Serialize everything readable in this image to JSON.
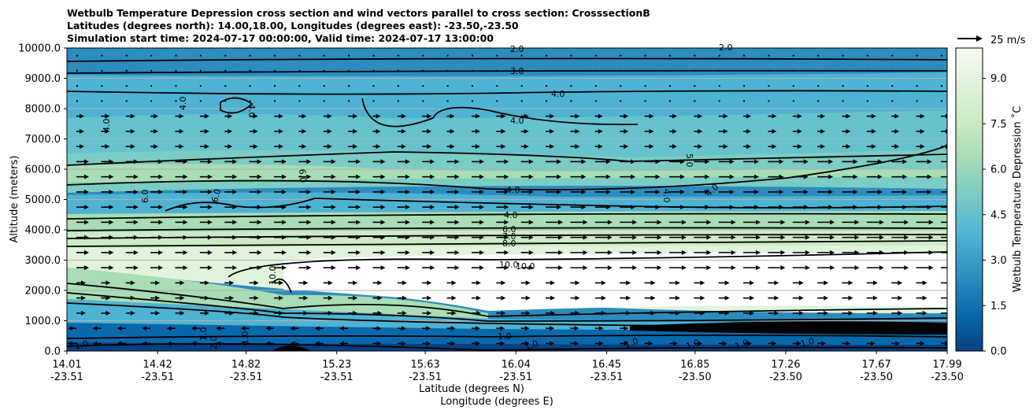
{
  "chart_data": {
    "type": "contour",
    "title_lines": [
      "Wetbulb Temperature Depression cross section and wind vectors parallel to cross section: CrosssectionB",
      "Latitudes (degrees north): 14.00,18.00, Longitudes (degrees east): -23.50,-23.50",
      "Simulation start time: 2024-07-17 00:00:00, Valid time: 2024-07-17 13:00:00"
    ],
    "xlabel_lat": "Latitude (degrees N)",
    "xlabel_lon": "Longitude (degrees E)",
    "ylabel": "Altitude (meters)",
    "ylim": [
      0,
      10000
    ],
    "y_ticks": [
      "0.0",
      "1000.0",
      "2000.0",
      "3000.0",
      "4000.0",
      "5000.0",
      "6000.0",
      "7000.0",
      "8000.0",
      "9000.0",
      "10000.0"
    ],
    "x_ticks": [
      {
        "lat": "14.01",
        "lon": "-23.51"
      },
      {
        "lat": "14.42",
        "lon": "-23.51"
      },
      {
        "lat": "14.82",
        "lon": "-23.51"
      },
      {
        "lat": "15.23",
        "lon": "-23.51"
      },
      {
        "lat": "15.63",
        "lon": "-23.51"
      },
      {
        "lat": "16.04",
        "lon": "-23.51"
      },
      {
        "lat": "16.45",
        "lon": "-23.51"
      },
      {
        "lat": "16.85",
        "lon": "-23.50"
      },
      {
        "lat": "17.26",
        "lon": "-23.50"
      },
      {
        "lat": "17.67",
        "lon": "-23.50"
      },
      {
        "lat": "17.99",
        "lon": "-23.50"
      }
    ],
    "colorbar": {
      "label": "Wetbulb Temperature Depression ˚C",
      "range": [
        0,
        10
      ],
      "ticks": [
        "0.0",
        "1.5",
        "3.0",
        "4.5",
        "6.0",
        "7.5",
        "9.0"
      ],
      "colormap": "GnBu_r",
      "colors": [
        "#084081",
        "#0868ac",
        "#2b8cbe",
        "#4eb3d3",
        "#7bccc4",
        "#a8ddb5",
        "#ccebc5",
        "#e0f3db",
        "#f7fcf0",
        "#ffffff"
      ]
    },
    "quiver_key": "25 m/s",
    "grid": "horizontal",
    "contour_labels": [
      "2.0",
      "2.0",
      "3.0",
      "4.0",
      "4.0",
      "4.0",
      "4.0",
      "4.0",
      "4.0",
      "4.0",
      "4.0",
      "4.0",
      "5.0",
      "6.0",
      "6.0",
      "6.0",
      "6.0",
      "7.0",
      "8.0",
      "10.0",
      "10.0",
      "10.0",
      "1.0",
      "1.0",
      "1.0",
      "1.0",
      "2.0",
      "1.0",
      "1.0",
      "1.0",
      "1.0",
      "1.0"
    ]
  }
}
